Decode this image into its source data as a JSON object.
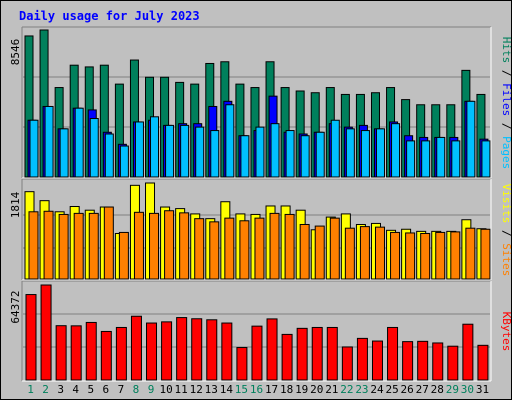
{
  "chart_data": {
    "type": "bar",
    "title": "Daily usage for July 2023",
    "categories": [
      "1",
      "2",
      "3",
      "4",
      "5",
      "6",
      "7",
      "8",
      "9",
      "10",
      "11",
      "12",
      "13",
      "14",
      "15",
      "16",
      "17",
      "18",
      "19",
      "20",
      "21",
      "22",
      "23",
      "24",
      "25",
      "26",
      "27",
      "28",
      "29",
      "30",
      "31"
    ],
    "weekend_days": [
      "1",
      "2",
      "8",
      "9",
      "15",
      "16",
      "22",
      "23",
      "29",
      "30"
    ],
    "panels": [
      {
        "name": "hits-files-pages",
        "max_label": "8546",
        "ymax": 8546,
        "legend": [
          {
            "text": "Pages",
            "color": "#00c0ff"
          },
          {
            "text": "Files",
            "color": "#0000ff"
          },
          {
            "text": "Hits",
            "color": "#00805c"
          }
        ],
        "series": [
          {
            "name": "Hits",
            "color": "#00805c",
            "values": [
              8200,
              8546,
              5200,
              6500,
              6400,
              6500,
              5400,
              6800,
              5800,
              5800,
              5500,
              5400,
              6600,
              6700,
              5400,
              5200,
              6700,
              5200,
              5000,
              4900,
              5200,
              4800,
              4800,
              4900,
              5200,
              4500,
              4200,
              4200,
              4200,
              6200,
              4800
            ]
          },
          {
            "name": "Files",
            "color": "#0000ff",
            "values": [
              3300,
              4100,
              2800,
              4000,
              3900,
              2600,
              1900,
              3200,
              3300,
              3000,
              3100,
              3100,
              4100,
              4400,
              2400,
              2700,
              4700,
              2600,
              2500,
              2600,
              3100,
              2900,
              3000,
              2800,
              3200,
              2400,
              2300,
              2300,
              2300,
              4400,
              2200
            ]
          },
          {
            "name": "Pages",
            "color": "#00c0ff",
            "values": [
              3300,
              4100,
              2800,
              4000,
              3400,
              2500,
              1800,
              3200,
              3500,
              3000,
              3000,
              2900,
              2700,
              4200,
              2400,
              2900,
              3100,
              2700,
              2400,
              2600,
              3300,
              2800,
              2700,
              2800,
              3100,
              2100,
              2100,
              2300,
              2100,
              4400,
              2100
            ]
          }
        ]
      },
      {
        "name": "visits-sites",
        "max_label": "1814",
        "ymax": 1814,
        "legend": [
          {
            "text": "Sites",
            "color": "#ff8000"
          },
          {
            "text": "Visits",
            "color": "#ffff00"
          }
        ],
        "series": [
          {
            "name": "Visits",
            "color": "#ffff00",
            "values": [
              1650,
              1480,
              1270,
              1370,
              1300,
              1360,
              860,
              1770,
              1814,
              1360,
              1330,
              1230,
              1140,
              1460,
              1230,
              1220,
              1380,
              1380,
              1300,
              930,
              1170,
              1230,
              1030,
              1050,
              920,
              940,
              900,
              900,
              900,
              1120,
              950
            ]
          },
          {
            "name": "Sites",
            "color": "#ff8000",
            "values": [
              1270,
              1280,
              1220,
              1240,
              1240,
              1360,
              880,
              1260,
              1240,
              1290,
              1250,
              1140,
              1080,
              1150,
              1100,
              1150,
              1240,
              1220,
              1030,
              1000,
              1150,
              960,
              990,
              980,
              880,
              870,
              860,
              880,
              890,
              960,
              940
            ]
          }
        ]
      },
      {
        "name": "kbytes",
        "max_label": "64372",
        "ymax": 64372,
        "legend": [
          {
            "text": "KBytes",
            "color": "#ff0000"
          }
        ],
        "series": [
          {
            "name": "KBytes",
            "color": "#ff0000",
            "values": [
              57900,
              64372,
              36800,
              36700,
              39000,
              32900,
              35600,
              43200,
              38600,
              39400,
              42300,
              41500,
              40800,
              38600,
              22000,
              36500,
              41400,
              30900,
              35000,
              35600,
              35600,
              22400,
              28200,
              26400,
              35600,
              26000,
              26200,
              25100,
              22900,
              37800,
              23500
            ]
          }
        ]
      }
    ]
  }
}
